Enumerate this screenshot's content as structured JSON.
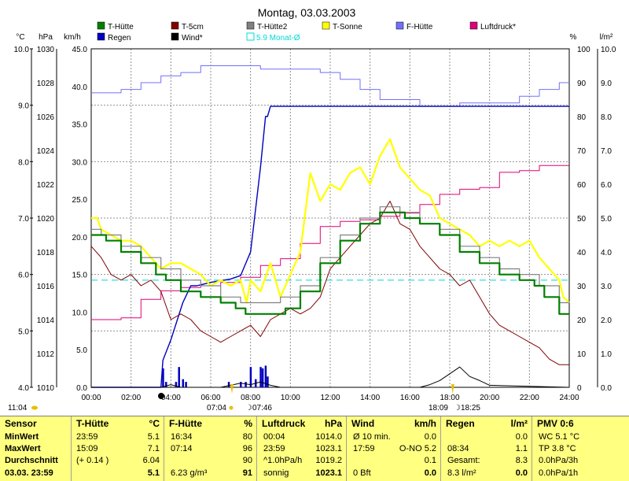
{
  "chart_data": {
    "type": "line",
    "title": "Montag, 03.03.2003",
    "x_ticks": [
      "00:00",
      "02:00",
      "04:00",
      "06:00",
      "08:00",
      "10:00",
      "12:00",
      "14:00",
      "16:00",
      "18:00",
      "20:00",
      "22:00",
      "24:00"
    ],
    "x_range": [
      0,
      24
    ],
    "axes": {
      "temp": {
        "unit": "°C",
        "ticks": [
          "4.0",
          "5.0",
          "6.0",
          "7.0",
          "8.0",
          "9.0",
          "10.0"
        ],
        "range": [
          4,
          10
        ]
      },
      "pressure": {
        "unit": "hPa",
        "ticks": [
          "1010",
          "1012",
          "1014",
          "1016",
          "1018",
          "1020",
          "1022",
          "1024",
          "1026",
          "1028",
          "1030"
        ],
        "range": [
          1010,
          1030
        ]
      },
      "wind": {
        "unit": "km/h",
        "ticks": [
          "0.0",
          "5.0",
          "10.0",
          "15.0",
          "20.0",
          "25.0",
          "30.0",
          "35.0",
          "40.0",
          "45.0"
        ],
        "range": [
          0,
          50
        ]
      },
      "humidity": {
        "unit": "%",
        "ticks": [
          "0",
          "10",
          "20",
          "30",
          "40",
          "50",
          "60",
          "70",
          "80",
          "90",
          "100"
        ],
        "range": [
          0,
          100
        ]
      },
      "rain": {
        "unit": "l/m²",
        "ticks": [
          "0.0",
          "1.0",
          "2.0",
          "3.0",
          "4.0",
          "5.0",
          "6.0",
          "7.0",
          "8.0",
          "9.0",
          "10.0"
        ],
        "range": [
          0,
          10
        ]
      }
    },
    "legend": [
      {
        "name": "T-Hütte",
        "color": "#008000"
      },
      {
        "name": "T-5cm",
        "color": "#800000"
      },
      {
        "name": "T-Hütte2",
        "color": "#808080"
      },
      {
        "name": "T-Sonne",
        "color": "#ffff00"
      },
      {
        "name": "F-Hütte",
        "color": "#7070ff"
      },
      {
        "name": "Luftdruck*",
        "color": "#e0007a"
      },
      {
        "name": "Regen",
        "color": "#0000c0"
      },
      {
        "name": "Wind*",
        "color": "#000000"
      },
      {
        "name": "5.9 Monat-Ø",
        "color": "#00d8d8"
      }
    ],
    "series": [
      {
        "name": "T-Hütte",
        "axis": "temp",
        "color": "#008000",
        "x": [
          0,
          0.5,
          1,
          2,
          3,
          3.5,
          4,
          5,
          6,
          7,
          7.5,
          8,
          8.5,
          9,
          9.5,
          10,
          11,
          12,
          13,
          14,
          15,
          15.5,
          16,
          17,
          18,
          19,
          20,
          21,
          22,
          22.5,
          23,
          24
        ],
        "y": [
          6.7,
          6.7,
          6.6,
          6.4,
          6.2,
          6.0,
          5.9,
          5.7,
          5.6,
          5.5,
          5.4,
          5.3,
          5.3,
          5.3,
          5.3,
          5.4,
          5.7,
          6.2,
          6.6,
          6.9,
          7.1,
          7.1,
          7.0,
          6.9,
          6.7,
          6.4,
          6.2,
          6.0,
          5.9,
          5.8,
          5.6,
          5.3
        ]
      },
      {
        "name": "T-Hütte2",
        "axis": "temp",
        "color": "#808080",
        "x": [
          0,
          1,
          2,
          3,
          4,
          5,
          6,
          7,
          8,
          9,
          10,
          11,
          12,
          13,
          14,
          15,
          16,
          17,
          18,
          19,
          20,
          21,
          22,
          23,
          24
        ],
        "y": [
          6.8,
          6.7,
          6.5,
          6.3,
          6.1,
          5.9,
          5.8,
          5.6,
          5.5,
          5.5,
          5.6,
          5.8,
          6.3,
          6.7,
          7.0,
          7.2,
          7.1,
          6.9,
          6.8,
          6.5,
          6.3,
          6.1,
          6.0,
          5.8,
          5.5
        ]
      },
      {
        "name": "T-5cm",
        "axis": "temp",
        "color": "#800000",
        "x": [
          0,
          0.5,
          1,
          1.5,
          2,
          2.5,
          3,
          3.5,
          4,
          4.5,
          5,
          5.5,
          6,
          6.5,
          7,
          7.5,
          8,
          8.5,
          9,
          9.5,
          10,
          10.5,
          11,
          11.5,
          12,
          12.5,
          13,
          13.5,
          14,
          14.5,
          15,
          15.5,
          16,
          16.5,
          17,
          17.5,
          18,
          18.5,
          19,
          19.5,
          20,
          20.5,
          21,
          21.5,
          22,
          22.5,
          23,
          23.5,
          24
        ],
        "y": [
          6.5,
          6.3,
          6.0,
          5.9,
          6.0,
          5.8,
          5.9,
          5.7,
          5.2,
          5.3,
          5.2,
          5.0,
          4.9,
          4.8,
          4.9,
          5.0,
          5.1,
          4.9,
          5.2,
          5.3,
          5.4,
          5.3,
          5.4,
          5.6,
          6.1,
          6.3,
          6.5,
          6.7,
          6.9,
          7.0,
          7.3,
          6.9,
          6.8,
          6.5,
          6.3,
          6.1,
          6.0,
          5.8,
          5.9,
          5.6,
          5.3,
          5.1,
          5.0,
          4.9,
          4.8,
          4.7,
          4.5,
          4.4,
          4.4
        ]
      },
      {
        "name": "T-Sonne",
        "axis": "temp",
        "color": "#ffff00",
        "x": [
          0,
          0.3,
          0.5,
          1,
          1.5,
          2,
          2.5,
          3,
          3.5,
          4,
          4.5,
          5,
          5.5,
          6,
          6.5,
          7,
          7.5,
          7.8,
          8,
          8.5,
          9,
          9.5,
          10,
          10.5,
          11,
          11.5,
          12,
          12.5,
          13,
          13.5,
          14,
          14.5,
          15,
          15.5,
          16,
          16.5,
          17,
          17.5,
          18,
          18.5,
          19,
          19.5,
          20,
          20.5,
          21,
          21.5,
          22,
          22.5,
          23,
          23.5,
          23.7,
          24
        ],
        "y": [
          7.0,
          7.0,
          6.8,
          6.7,
          6.6,
          6.6,
          6.5,
          6.3,
          6.1,
          6.2,
          6.2,
          6.1,
          6.0,
          5.8,
          5.9,
          5.8,
          5.9,
          5.5,
          5.9,
          5.7,
          6.2,
          5.6,
          6.0,
          6.4,
          7.8,
          7.3,
          7.6,
          7.5,
          7.8,
          7.9,
          7.6,
          8.1,
          8.4,
          7.9,
          7.7,
          7.5,
          7.4,
          7.0,
          6.9,
          6.8,
          6.7,
          6.5,
          6.6,
          6.5,
          6.6,
          6.5,
          6.6,
          6.3,
          6.1,
          5.9,
          5.6,
          5.5
        ]
      },
      {
        "name": "F-Hütte",
        "axis": "humidity",
        "color": "#7070ff",
        "x": [
          0,
          1,
          2,
          3,
          4,
          5,
          6,
          7,
          8,
          9,
          10,
          11,
          12,
          13,
          14,
          15,
          16,
          17,
          18,
          19,
          20,
          21,
          22,
          23,
          24
        ],
        "y": [
          87,
          87,
          88,
          90,
          92,
          93,
          95,
          95,
          95,
          94,
          94,
          94,
          93,
          91,
          88,
          85,
          85,
          83,
          83,
          84,
          84,
          84,
          86,
          88,
          90
        ]
      },
      {
        "name": "Luftdruck*",
        "axis": "pressure",
        "color": "#e0007a",
        "x": [
          0,
          1,
          2,
          3,
          4,
          5,
          6,
          7,
          8,
          9,
          10,
          11,
          12,
          13,
          14,
          15,
          16,
          17,
          18,
          19,
          20,
          21,
          22,
          23,
          24
        ],
        "y": [
          1014.0,
          1014.0,
          1014.1,
          1015.2,
          1015.7,
          1015.9,
          1016.0,
          1016.2,
          1016.5,
          1017.2,
          1017.6,
          1018.5,
          1019.5,
          1019.8,
          1019.9,
          1020.1,
          1020.3,
          1020.8,
          1021.4,
          1021.7,
          1021.8,
          1022.7,
          1022.8,
          1023.1,
          1023.1
        ]
      },
      {
        "name": "Regen",
        "axis": "rain",
        "color": "#0000c0",
        "x": [
          0,
          3.5,
          3.6,
          4.0,
          4.6,
          5.0,
          5.3,
          6.0,
          7.0,
          7.5,
          8.0,
          8.5,
          8.75,
          8.85,
          9.0,
          24
        ],
        "y": [
          0,
          0,
          0.8,
          1.4,
          2.5,
          3.0,
          3.0,
          3.1,
          3.2,
          3.3,
          4.0,
          6.5,
          8.0,
          8.0,
          8.3,
          8.3
        ]
      },
      {
        "name": "Wind*",
        "axis": "wind",
        "color": "#000000",
        "x": [
          0,
          3.5,
          4.0,
          4.5,
          6.5,
          7.0,
          7.5,
          8.0,
          8.5,
          9.0,
          9.5,
          16.5,
          17.0,
          17.5,
          18.0,
          18.5,
          19.0,
          19.5,
          20.0,
          24
        ],
        "y": [
          0,
          0,
          0.4,
          0,
          0,
          0.3,
          0.6,
          0.4,
          0.8,
          0.3,
          0,
          0,
          0.4,
          1.0,
          2.0,
          3.0,
          1.6,
          1.0,
          0.3,
          0
        ]
      }
    ],
    "rain_bars": {
      "x": [
        3.6,
        3.75,
        4.25,
        4.4,
        4.6,
        4.75,
        6.9,
        7.5,
        7.75,
        8.0,
        8.25,
        8.5,
        8.6,
        8.75,
        8.85
      ],
      "y": [
        2.8,
        0.8,
        0.8,
        3.0,
        1.2,
        0.8,
        0.8,
        0.8,
        0.8,
        3.0,
        1.2,
        3.0,
        2.8,
        3.2,
        1.6
      ]
    },
    "month_avg": {
      "label": "5.9 Monat-Ø",
      "value": 5.9,
      "axis": "temp"
    },
    "sun": {
      "rise": "07:04",
      "set": "18:09",
      "moon_rise": "07:46",
      "moon_set": "18:25",
      "extra": "11:04"
    }
  },
  "stats": {
    "sensor": {
      "title": "Sensor",
      "rows": [
        "MinWert",
        "MaxWert",
        "Durchschnitt",
        "03.03. 23:59"
      ]
    },
    "t_huette": {
      "title": "T-Hütte",
      "unit": "°C",
      "rows": [
        [
          "23:59",
          "5.1"
        ],
        [
          "15:09",
          "7.1"
        ],
        [
          "(+ 0.14 )",
          "6.04"
        ],
        [
          "",
          "5.1"
        ]
      ]
    },
    "f_huette": {
      "title": "F-Hütte",
      "unit": "%",
      "rows": [
        [
          "16:34",
          "80"
        ],
        [
          "07:14",
          "96"
        ],
        [
          "",
          "90"
        ],
        [
          "6.23 g/m³",
          "91"
        ]
      ]
    },
    "luftdruck": {
      "title": "Luftdruck",
      "unit": "hPa",
      "rows": [
        [
          "00:04",
          "1014.0"
        ],
        [
          "23:59",
          "1023.1"
        ],
        [
          "^1.0hPa/h",
          "1019.2"
        ],
        [
          "sonnig",
          "1023.1"
        ]
      ]
    },
    "wind": {
      "title": "Wind",
      "unit": "km/h",
      "rows": [
        [
          "Ø 10 min.",
          "0.0"
        ],
        [
          "17:59",
          "O-NO 5.2"
        ],
        [
          "",
          "0.1"
        ],
        [
          "0 Bft",
          "0.0"
        ]
      ]
    },
    "regen": {
      "title": "Regen",
      "unit": "l/m²",
      "rows": [
        [
          "",
          "0.0"
        ],
        [
          "08:34",
          "1.1"
        ],
        [
          "Gesamt:",
          "8.3"
        ],
        [
          "8.3 l/m²",
          "0.0"
        ]
      ]
    },
    "pmv": {
      "title": "PMV 0:6",
      "rows": [
        "WC 5.1 °C",
        "TP 3.8 °C",
        "0.0hPa/3h",
        "0.0hPa/1h"
      ]
    }
  }
}
